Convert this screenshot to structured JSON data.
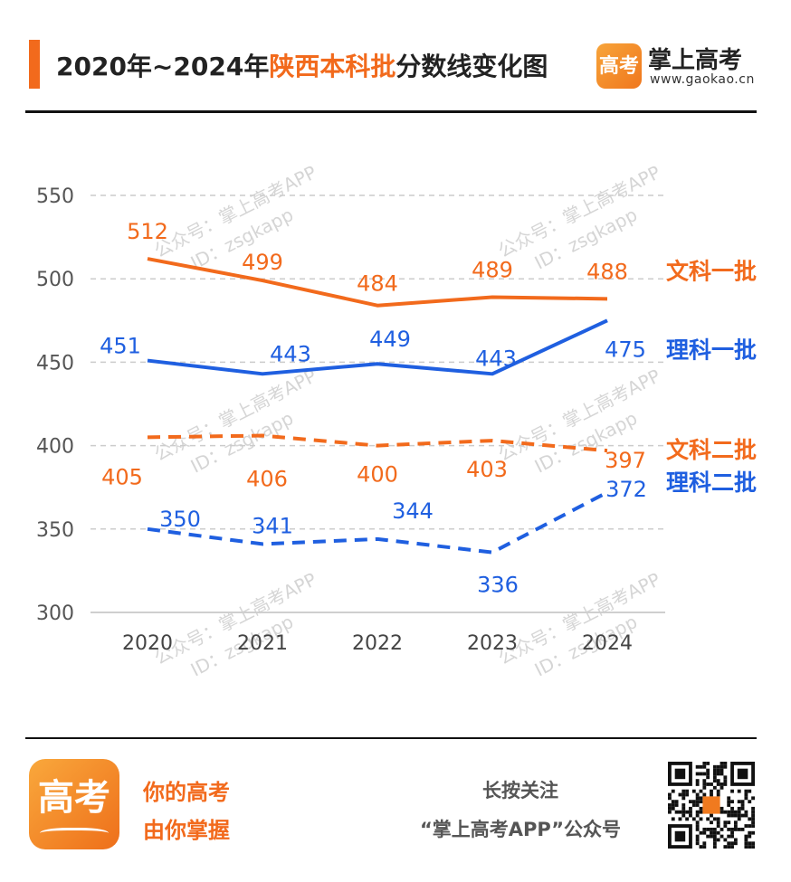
{
  "header": {
    "title_prefix": "2020年~2024年",
    "title_highlight": "陕西本科批",
    "title_suffix": "分数线变化图",
    "logo_char": "高考",
    "brand_name": "掌上高考",
    "brand_url": "www.gaokao.cn"
  },
  "watermark": {
    "line1": "公众号：掌上高考APP",
    "line2": "ID：zsgkapp"
  },
  "colors": {
    "orange": "#f26a1c",
    "blue": "#1f5fe0",
    "grid": "#cccccc"
  },
  "chart_data": {
    "type": "line",
    "x": [
      "2020",
      "2021",
      "2022",
      "2023",
      "2024"
    ],
    "ylim": [
      300,
      550
    ],
    "yticks": [
      300,
      350,
      400,
      450,
      500,
      550
    ],
    "grid": true,
    "series": [
      {
        "name": "文科一批",
        "values": [
          512,
          499,
          484,
          489,
          488
        ],
        "color": "#f26a1c",
        "dashed": false
      },
      {
        "name": "理科一批",
        "values": [
          451,
          443,
          449,
          443,
          475
        ],
        "color": "#1f5fe0",
        "dashed": false
      },
      {
        "name": "文科二批",
        "values": [
          405,
          406,
          400,
          403,
          397
        ],
        "color": "#f26a1c",
        "dashed": true
      },
      {
        "name": "理科二批",
        "values": [
          350,
          341,
          344,
          336,
          372
        ],
        "color": "#1f5fe0",
        "dashed": true
      }
    ]
  },
  "footer": {
    "slogan_line1": "你的高考",
    "slogan_line2": "由你掌握",
    "follow_line1": "长按关注",
    "follow_line2": "“掌上高考APP”公众号",
    "logo_char": "高考"
  }
}
